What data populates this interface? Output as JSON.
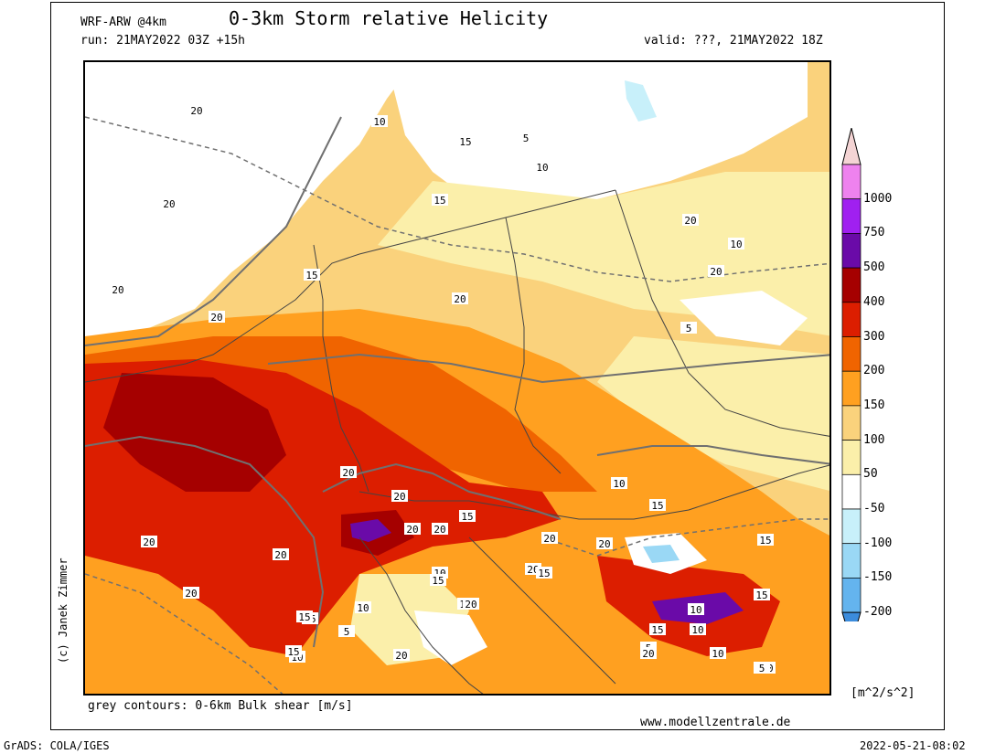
{
  "header": {
    "model": "WRF-ARW @4km",
    "title": "0-3km Storm relative Helicity",
    "run": "run: 21MAY2022 03Z +15h",
    "valid": "valid: ???, 21MAY2022 18Z"
  },
  "footer": {
    "contour_note": "grey contours: 0-6km Bulk shear [m/s]",
    "website": "www.modellzentrale.de",
    "grads": "GrADS: COLA/IGES",
    "timestamp": "2022-05-21-08:02",
    "credit": "(c) Janek Zimmer"
  },
  "colorbar": {
    "units": "[m^2/s^2]",
    "levels": [
      "1000",
      "750",
      "500",
      "400",
      "300",
      "200",
      "150",
      "100",
      "50",
      "-50",
      "-100",
      "-150",
      "-200"
    ],
    "colors": [
      "#f4d4d4",
      "#ee82ee",
      "#a020f0",
      "#6a0aa8",
      "#a50000",
      "#dc1e00",
      "#f06400",
      "#ffa020",
      "#fad27c",
      "#fbefaa",
      "#ffffff",
      "#c8f0fa",
      "#9ad8f5",
      "#64b4ee",
      "#3c8cdc"
    ]
  },
  "map": {
    "contour_labels": [
      "20",
      "10",
      "15",
      "5",
      "20",
      "15",
      "10",
      "20",
      "15",
      "20",
      "5",
      "10",
      "20",
      "20",
      "20",
      "20",
      "20",
      "20",
      "20",
      "20",
      "15",
      "10",
      "15",
      "20",
      "20",
      "20",
      "20",
      "20",
      "10",
      "15",
      "15",
      "10",
      "10",
      "15",
      "20",
      "15",
      "10",
      "15",
      "15",
      "10",
      "20",
      "5",
      "10",
      "20",
      "10",
      "15",
      "10",
      "5",
      "15",
      "5"
    ]
  }
}
